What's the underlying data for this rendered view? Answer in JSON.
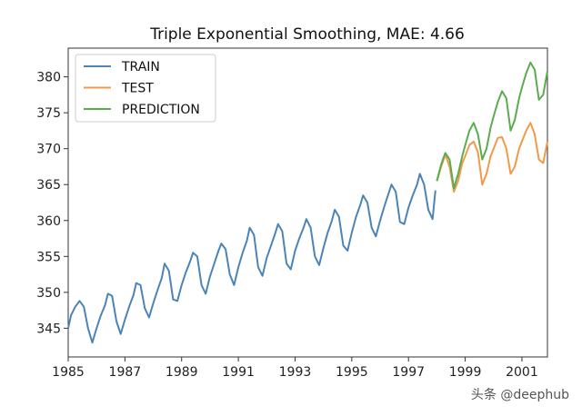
{
  "chart_data": {
    "type": "line",
    "title": "Triple Exponential Smoothing, MAE: 4.66",
    "xlabel": "",
    "ylabel": "",
    "xlim": [
      1985,
      2001.9
    ],
    "ylim": [
      341,
      384
    ],
    "x_ticks": [
      1985,
      1987,
      1989,
      1991,
      1993,
      1995,
      1997,
      1999,
      2001
    ],
    "y_ticks": [
      345,
      350,
      355,
      360,
      365,
      370,
      375,
      380
    ],
    "grid": false,
    "legend_placement": "top-left",
    "series": [
      {
        "name": "TRAIN",
        "color": "#4c84b8",
        "x": [
          1985.0,
          1985.1,
          1985.25,
          1985.4,
          1985.55,
          1985.7,
          1985.85,
          1986.0,
          1986.15,
          1986.3,
          1986.4,
          1986.55,
          1986.7,
          1986.85,
          1987.0,
          1987.15,
          1987.3,
          1987.4,
          1987.55,
          1987.7,
          1987.85,
          1988.0,
          1988.15,
          1988.3,
          1988.4,
          1988.55,
          1988.7,
          1988.85,
          1989.0,
          1989.15,
          1989.3,
          1989.4,
          1989.55,
          1989.7,
          1989.85,
          1990.0,
          1990.15,
          1990.3,
          1990.4,
          1990.55,
          1990.7,
          1990.85,
          1991.0,
          1991.15,
          1991.3,
          1991.4,
          1991.55,
          1991.7,
          1991.85,
          1992.0,
          1992.15,
          1992.3,
          1992.4,
          1992.55,
          1992.7,
          1992.85,
          1993.0,
          1993.15,
          1993.3,
          1993.4,
          1993.55,
          1993.7,
          1993.85,
          1994.0,
          1994.15,
          1994.3,
          1994.4,
          1994.55,
          1994.7,
          1994.85,
          1995.0,
          1995.15,
          1995.3,
          1995.4,
          1995.55,
          1995.7,
          1995.85,
          1996.0,
          1996.15,
          1996.3,
          1996.4,
          1996.55,
          1996.7,
          1996.85,
          1997.0,
          1997.15,
          1997.3,
          1997.4,
          1997.55,
          1997.7,
          1997.85,
          1997.95
        ],
        "y": [
          345.0,
          346.8,
          348.0,
          348.8,
          348.0,
          345.0,
          343.0,
          345.0,
          346.8,
          348.2,
          349.8,
          349.5,
          346.0,
          344.2,
          346.2,
          348.0,
          349.6,
          351.3,
          351.0,
          347.8,
          346.5,
          348.5,
          350.3,
          352.0,
          354.0,
          353.0,
          349.0,
          348.8,
          351.0,
          352.8,
          354.3,
          355.5,
          355.0,
          351.0,
          349.8,
          352.2,
          354.0,
          355.8,
          356.8,
          356.0,
          352.5,
          351.0,
          353.5,
          355.5,
          357.2,
          359.0,
          358.0,
          353.5,
          352.3,
          354.8,
          356.5,
          358.2,
          359.5,
          358.5,
          354.0,
          353.2,
          355.8,
          357.5,
          359.0,
          360.2,
          359.0,
          355.0,
          353.8,
          356.2,
          358.3,
          360.0,
          361.5,
          360.5,
          356.5,
          355.8,
          358.3,
          360.5,
          362.2,
          363.5,
          362.5,
          359.0,
          357.8,
          360.0,
          362.0,
          363.8,
          365.0,
          364.0,
          359.8,
          359.5,
          361.8,
          363.5,
          365.0,
          366.5,
          365.0,
          361.5,
          360.2,
          364.2
        ]
      },
      {
        "name": "TEST",
        "color": "#f09a4a",
        "x": [
          1998.0,
          1998.15,
          1998.3,
          1998.45,
          1998.6,
          1998.75,
          1998.9,
          1999.0,
          1999.15,
          1999.3,
          1999.45,
          1999.6,
          1999.75,
          1999.9,
          2000.0,
          2000.15,
          2000.3,
          2000.45,
          2000.6,
          2000.75,
          2000.9,
          2001.0,
          2001.15,
          2001.3,
          2001.45,
          2001.6,
          2001.75,
          2001.9
        ],
        "y": [
          365.5,
          367.5,
          369.2,
          367.5,
          364.0,
          365.5,
          368.0,
          369.0,
          370.5,
          371.0,
          369.5,
          365.0,
          366.5,
          369.0,
          370.0,
          371.5,
          371.6,
          370.0,
          366.5,
          367.5,
          370.0,
          371.0,
          372.5,
          373.6,
          372.0,
          368.5,
          368.0,
          371.0
        ]
      },
      {
        "name": "PREDICTION",
        "color": "#5aac4f",
        "x": [
          1998.0,
          1998.15,
          1998.3,
          1998.45,
          1998.6,
          1998.75,
          1998.9,
          1999.0,
          1999.15,
          1999.3,
          1999.45,
          1999.6,
          1999.75,
          1999.9,
          2000.0,
          2000.15,
          2000.3,
          2000.45,
          2000.6,
          2000.75,
          2000.9,
          2001.0,
          2001.15,
          2001.3,
          2001.45,
          2001.6,
          2001.75,
          2001.9
        ],
        "y": [
          365.5,
          367.8,
          369.4,
          368.5,
          364.5,
          366.5,
          369.0,
          370.5,
          372.5,
          373.6,
          372.0,
          368.5,
          370.0,
          373.0,
          374.5,
          376.5,
          378.0,
          377.0,
          372.5,
          374.0,
          377.0,
          378.5,
          380.5,
          382.0,
          381.0,
          376.8,
          377.5,
          380.8
        ]
      }
    ]
  },
  "watermark": "头条 @deephub"
}
